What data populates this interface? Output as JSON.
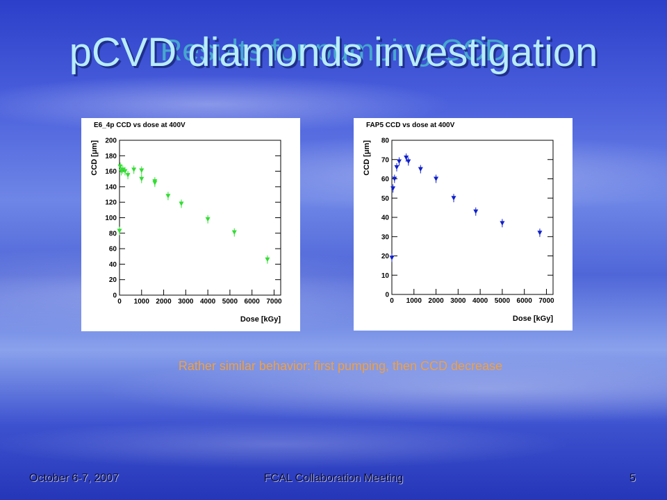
{
  "slide": {
    "title": "pCVD diamonds investigation",
    "subtitle": "Results for pumping CCD",
    "caption": "Rather similar behavior: first pumping, then CCD decrease",
    "footer": {
      "date": "October 6-7, 2007",
      "center": "FCAL Collaboration Meeting",
      "page": "5"
    }
  },
  "chart_data": [
    {
      "type": "scatter",
      "title": "E6_4p CCD vs dose at 400V",
      "xlabel": "Dose [kGy]",
      "ylabel": "CCD [μm]",
      "xlim": [
        0,
        7300
      ],
      "ylim": [
        0,
        200
      ],
      "xticks": [
        0,
        1000,
        2000,
        3000,
        4000,
        5000,
        6000,
        7000
      ],
      "yticks": [
        0,
        20,
        40,
        60,
        80,
        100,
        120,
        140,
        160,
        180,
        200
      ],
      "color": "#33dd33",
      "marker": "triangle-down",
      "grid": false,
      "x": [
        0,
        30,
        80,
        150,
        250,
        380,
        650,
        1000,
        1000,
        1600,
        1600,
        2200,
        2800,
        4000,
        5200,
        6700
      ],
      "y": [
        83,
        166,
        160,
        162,
        160,
        155,
        162,
        161,
        150,
        147,
        145,
        128,
        118,
        98,
        81,
        46
      ]
    },
    {
      "type": "scatter",
      "title": "FAP5 CCD vs dose at 400V",
      "xlabel": "Dose [kGy]",
      "ylabel": "CCD [μm]",
      "xlim": [
        0,
        7300
      ],
      "ylim": [
        0,
        80
      ],
      "xticks": [
        0,
        1000,
        2000,
        3000,
        4000,
        5000,
        6000,
        7000
      ],
      "yticks": [
        0,
        10,
        20,
        30,
        40,
        50,
        60,
        70,
        80
      ],
      "color": "#1020cc",
      "marker": "triangle-down",
      "grid": false,
      "x": [
        0,
        50,
        120,
        220,
        330,
        650,
        750,
        1300,
        2000,
        2800,
        3800,
        5000,
        6700
      ],
      "y": [
        19,
        55,
        60,
        66,
        69,
        71,
        69,
        65,
        60,
        50,
        43,
        37,
        32
      ]
    }
  ]
}
